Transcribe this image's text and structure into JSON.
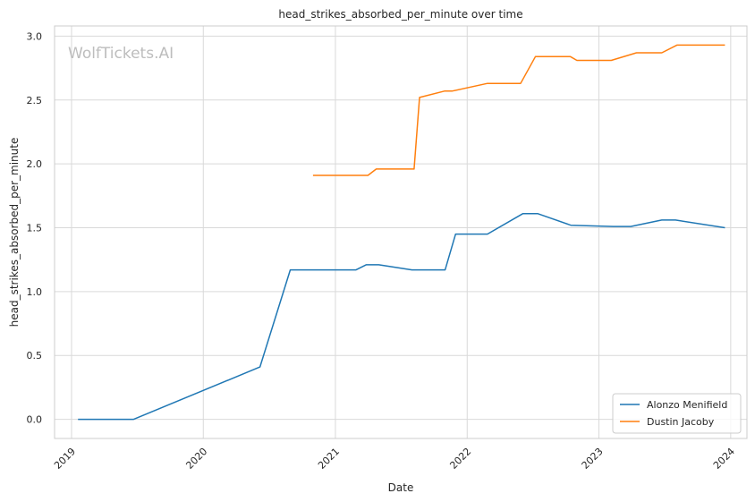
{
  "chart_data": {
    "type": "line",
    "title": "head_strikes_absorbed_per_minute over time",
    "xlabel": "Date",
    "ylabel": "head_strikes_absorbed_per_minute",
    "watermark": "WolfTickets.AI",
    "x_ticks": [
      {
        "date": "2019-01-01",
        "label": "2019"
      },
      {
        "date": "2020-01-01",
        "label": "2020"
      },
      {
        "date": "2021-01-01",
        "label": "2021"
      },
      {
        "date": "2022-01-01",
        "label": "2022"
      },
      {
        "date": "2023-01-01",
        "label": "2023"
      },
      {
        "date": "2024-01-01",
        "label": "2024"
      }
    ],
    "y_ticks": [
      0.0,
      0.5,
      1.0,
      1.5,
      2.0,
      2.5,
      3.0
    ],
    "y_tick_labels": [
      "0.0",
      "0.5",
      "1.0",
      "1.5",
      "2.0",
      "2.5",
      "3.0"
    ],
    "xlim": [
      "2018-11-15",
      "2024-02-15"
    ],
    "ylim": [
      -0.15,
      3.08
    ],
    "grid": true,
    "legend_position": "bottom-right",
    "series": [
      {
        "name": "Alonzo Menifield",
        "color": "#1f77b4",
        "points": [
          [
            "2019-01-19",
            0.0
          ],
          [
            "2019-06-22",
            0.0
          ],
          [
            "2020-06-06",
            0.41
          ],
          [
            "2020-08-29",
            1.17
          ],
          [
            "2021-02-27",
            1.17
          ],
          [
            "2021-03-27",
            1.21
          ],
          [
            "2021-05-01",
            1.21
          ],
          [
            "2021-08-01",
            1.17
          ],
          [
            "2021-11-01",
            1.17
          ],
          [
            "2021-11-30",
            1.45
          ],
          [
            "2022-02-26",
            1.45
          ],
          [
            "2022-06-04",
            1.61
          ],
          [
            "2022-07-16",
            1.61
          ],
          [
            "2022-10-15",
            1.52
          ],
          [
            "2023-02-10",
            1.51
          ],
          [
            "2023-03-30",
            1.51
          ],
          [
            "2023-06-24",
            1.56
          ],
          [
            "2023-08-01",
            1.56
          ],
          [
            "2023-12-16",
            1.5
          ]
        ]
      },
      {
        "name": "Dustin Jacoby",
        "color": "#ff7f0e",
        "points": [
          [
            "2020-10-31",
            1.91
          ],
          [
            "2021-04-01",
            1.91
          ],
          [
            "2021-04-24",
            1.96
          ],
          [
            "2021-08-07",
            1.96
          ],
          [
            "2021-08-22",
            2.52
          ],
          [
            "2021-10-30",
            2.57
          ],
          [
            "2021-11-20",
            2.57
          ],
          [
            "2022-02-26",
            2.63
          ],
          [
            "2022-05-29",
            2.63
          ],
          [
            "2022-07-09",
            2.84
          ],
          [
            "2022-10-14",
            2.84
          ],
          [
            "2022-11-01",
            2.81
          ],
          [
            "2023-02-04",
            2.81
          ],
          [
            "2023-04-15",
            2.87
          ],
          [
            "2023-06-24",
            2.87
          ],
          [
            "2023-08-05",
            2.93
          ],
          [
            "2023-12-16",
            2.93
          ]
        ]
      }
    ]
  }
}
